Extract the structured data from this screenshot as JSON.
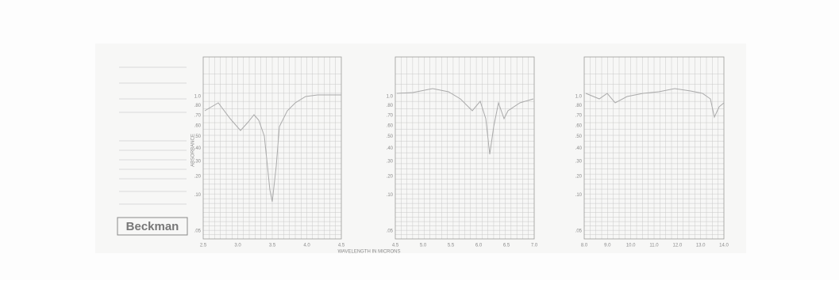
{
  "form": {
    "brand": "Beckman"
  },
  "axes": {
    "y_title": "ABSORBANCE",
    "x_title": "WAVELENGTH IN MICRONS"
  },
  "panels": [
    {
      "x_ticks": [
        "2.5",
        "3.0",
        "3.5",
        "4.0",
        "4.5"
      ],
      "y_ticks": [
        ".05",
        ".10",
        ".20",
        ".30",
        ".40",
        ".50",
        ".60",
        ".70",
        ".80",
        "1.0"
      ]
    },
    {
      "x_ticks": [
        "4.5",
        "5.0",
        "5.5",
        "6.0",
        "6.5",
        "7.0"
      ],
      "y_ticks": [
        ".05",
        ".10",
        ".20",
        ".30",
        ".40",
        ".50",
        ".60",
        ".70",
        ".80",
        "1.0"
      ]
    },
    {
      "x_ticks": [
        "8.0",
        "9.0",
        "10.0",
        "11.0",
        "12.0",
        "13.0",
        "14.0"
      ],
      "y_ticks": [
        ".05",
        ".10",
        ".20",
        ".30",
        ".40",
        ".50",
        ".60",
        ".70",
        ".80",
        "1.0"
      ]
    }
  ]
}
